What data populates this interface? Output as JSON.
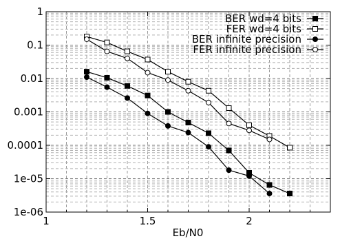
{
  "chart_data": {
    "type": "line",
    "title": "",
    "xlabel": "Eb/N0",
    "ylabel": "",
    "xscale": "linear",
    "yscale": "log",
    "xlim": [
      1,
      2.4
    ],
    "ylim": [
      1e-06,
      1
    ],
    "grid": true,
    "legend_position": "top-right",
    "x_ticks": [
      {
        "value": 1,
        "label": "1"
      },
      {
        "value": 1.5,
        "label": "1.5"
      },
      {
        "value": 2,
        "label": "2"
      }
    ],
    "y_ticks": [
      {
        "value": 1,
        "label": "1"
      },
      {
        "value": 0.1,
        "label": "0.1"
      },
      {
        "value": 0.01,
        "label": "0.01"
      },
      {
        "value": 0.001,
        "label": "0.001"
      },
      {
        "value": 0.0001,
        "label": "0.0001"
      },
      {
        "value": 1e-05,
        "label": "1e-05"
      },
      {
        "value": 1e-06,
        "label": "1e-06"
      }
    ],
    "series": [
      {
        "name": "BER wd=4 bits",
        "marker": "filled-square",
        "color": "#000000",
        "x": [
          1.2,
          1.3,
          1.4,
          1.5,
          1.6,
          1.7,
          1.8,
          1.9,
          2.0,
          2.1,
          2.2
        ],
        "y": [
          0.016,
          0.0105,
          0.006,
          0.0031,
          0.001,
          0.00048,
          0.00023,
          7e-05,
          1.5e-05,
          6.5e-06,
          3.6e-06
        ]
      },
      {
        "name": "FER wd=4 bits",
        "marker": "open-square",
        "color": "#000000",
        "x": [
          1.2,
          1.3,
          1.4,
          1.5,
          1.6,
          1.7,
          1.8,
          1.9,
          2.0,
          2.1,
          2.2
        ],
        "y": [
          0.18,
          0.12,
          0.065,
          0.037,
          0.016,
          0.008,
          0.0043,
          0.0013,
          0.0004,
          0.00019,
          8.5e-05
        ]
      },
      {
        "name": "BER infinite precision",
        "marker": "filled-circle",
        "color": "#000000",
        "x": [
          1.2,
          1.3,
          1.4,
          1.5,
          1.6,
          1.7,
          1.8,
          1.9,
          2.0,
          2.1
        ],
        "y": [
          0.011,
          0.0055,
          0.0026,
          0.0009,
          0.00038,
          0.00024,
          9e-05,
          1.8e-05,
          1.2e-05,
          3.6e-06
        ]
      },
      {
        "name": "FER infinite precision",
        "marker": "open-circle",
        "color": "#000000",
        "x": [
          1.2,
          1.3,
          1.4,
          1.5,
          1.6,
          1.7,
          1.8,
          1.9,
          2.0,
          2.1
        ],
        "y": [
          0.15,
          0.065,
          0.04,
          0.015,
          0.009,
          0.0043,
          0.0019,
          0.00045,
          0.00028,
          0.00015
        ]
      }
    ]
  }
}
